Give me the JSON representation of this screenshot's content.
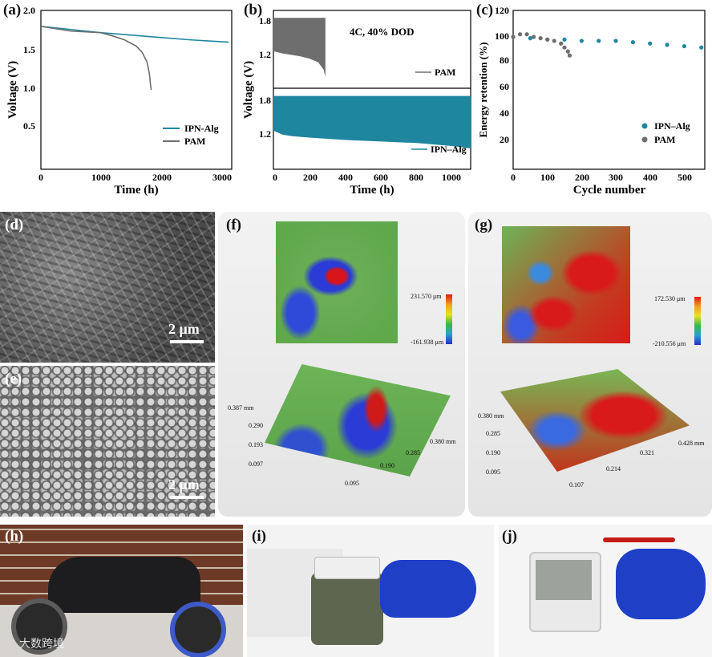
{
  "panels": {
    "a": {
      "label": "(a)",
      "xlabel": "Time (h)",
      "ylabel": "Voltage (V)",
      "xticks": [
        "0",
        "1000",
        "2000",
        "3000"
      ],
      "yticks": [
        "0.5",
        "1.0",
        "1.5",
        "2.0"
      ],
      "legend": [
        "IPN-Alg",
        "PAM"
      ]
    },
    "b": {
      "label": "(b)",
      "xlabel": "Time (h)",
      "ylabel": "Voltage (V)",
      "annotation": "4C, 40% DOD",
      "xticks": [
        "0",
        "200",
        "400",
        "600",
        "800",
        "1000"
      ],
      "yticks_top": [
        "1.2",
        "1.8"
      ],
      "yticks_bottom": [
        "1.2",
        "1.8"
      ],
      "legend_top": "PAM",
      "legend_bottom": "IPN–Alg"
    },
    "c": {
      "label": "(c)",
      "xlabel": "Cycle number",
      "ylabel": "Energy retention (%)",
      "xticks": [
        "0",
        "100",
        "200",
        "300",
        "400",
        "500"
      ],
      "yticks": [
        "20",
        "40",
        "60",
        "80",
        "100",
        "120"
      ],
      "legend": [
        "IPN–Alg",
        "PAM"
      ]
    },
    "d": {
      "label": "(d)",
      "scale": "2 μm"
    },
    "e": {
      "label": "(e)",
      "scale": "2 μm"
    },
    "f": {
      "label": "(f)",
      "cb_max": "231.570 μm",
      "cb_min": "-161.938 μm",
      "z_ticks": [
        "0.387 mm",
        "0.290",
        "0.193",
        "0.097"
      ],
      "x_ticks": [
        "0.095",
        "0.190",
        "0.285",
        "0.380 mm"
      ]
    },
    "g": {
      "label": "(g)",
      "cb_max": "172.530 μm",
      "cb_min": "-210.556 μm",
      "z_ticks": [
        "0.380 mm",
        "0.285",
        "0.190",
        "0.095"
      ],
      "x_ticks": [
        "0.107",
        "0.214",
        "0.321",
        "0.428 mm"
      ]
    },
    "h": {
      "label": "(h)"
    },
    "i": {
      "label": "(i)"
    },
    "j": {
      "label": "(j)"
    }
  },
  "watermark": "大数跨境",
  "colors": {
    "ipn": "#1f86a0",
    "pam": "#6e6e6e"
  },
  "chart_data": [
    {
      "type": "line",
      "panel": "a",
      "xlabel": "Time (h)",
      "ylabel": "Voltage (V)",
      "xlim": [
        0,
        3200
      ],
      "ylim": [
        0,
        2.0
      ],
      "series": [
        {
          "name": "IPN-Alg",
          "x": [
            0,
            500,
            1000,
            1500,
            2000,
            2500,
            3150
          ],
          "y": [
            1.8,
            1.76,
            1.72,
            1.69,
            1.66,
            1.63,
            1.6
          ]
        },
        {
          "name": "PAM",
          "x": [
            0,
            500,
            1000,
            1200,
            1400,
            1600,
            1700,
            1780,
            1820,
            1840,
            1850
          ],
          "y": [
            1.8,
            1.74,
            1.72,
            1.68,
            1.63,
            1.55,
            1.47,
            1.35,
            1.2,
            1.05,
            1.0
          ]
        }
      ]
    },
    {
      "type": "line",
      "panel": "b",
      "annotation": "4C, 40% DOD",
      "xlabel": "Time (h)",
      "ylabel": "Voltage (V)",
      "xlim": [
        0,
        1100
      ],
      "series": [
        {
          "name": "PAM",
          "x": [
            0,
            50,
            100,
            150,
            200,
            250,
            280,
            290
          ],
          "y_upper": [
            1.85,
            1.85,
            1.85,
            1.85,
            1.85,
            1.85,
            1.85,
            1.85
          ],
          "y_lower": [
            1.4,
            1.37,
            1.35,
            1.33,
            1.3,
            1.25,
            1.15,
            1.05
          ]
        },
        {
          "name": "IPN–Alg",
          "x": [
            0,
            50,
            100,
            200,
            400,
            600,
            800,
            1000,
            1100
          ],
          "y_upper": [
            1.85,
            1.85,
            1.85,
            1.85,
            1.85,
            1.85,
            1.85,
            1.85,
            1.85
          ],
          "y_lower": [
            1.4,
            1.35,
            1.33,
            1.31,
            1.28,
            1.26,
            1.24,
            1.2,
            1.17
          ]
        }
      ]
    },
    {
      "type": "scatter",
      "panel": "c",
      "xlabel": "Cycle number",
      "ylabel": "Energy retention (%)",
      "xlim": [
        0,
        560
      ],
      "ylim": [
        0,
        120
      ],
      "series": [
        {
          "name": "IPN–Alg",
          "x": [
            0,
            50,
            100,
            150,
            200,
            250,
            300,
            350,
            400,
            450,
            500,
            550
          ],
          "y": [
            100,
            99,
            98,
            98,
            97,
            97,
            97,
            96,
            95,
            94,
            93,
            92
          ]
        },
        {
          "name": "PAM",
          "x": [
            0,
            20,
            40,
            60,
            80,
            100,
            120,
            140,
            150,
            160,
            165
          ],
          "y": [
            100,
            102,
            102,
            100,
            99,
            98,
            97,
            95,
            92,
            89,
            86
          ]
        }
      ]
    }
  ]
}
